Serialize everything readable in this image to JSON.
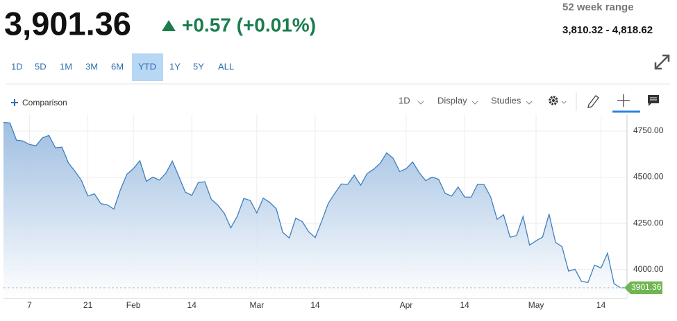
{
  "header": {
    "price": "3,901.36",
    "change": "+0.57 (+0.01%)",
    "range_label": "52 week range",
    "range_value": "3,810.32 - 4,818.62"
  },
  "range_buttons": {
    "items": [
      "1D",
      "5D",
      "1M",
      "3M",
      "6M",
      "YTD",
      "1Y",
      "5Y",
      "ALL"
    ],
    "selected": 5
  },
  "toolbar": {
    "comparison": "Comparison",
    "interval": "1D",
    "display": "Display",
    "studies": "Studies"
  },
  "chart_data": {
    "type": "area",
    "categories": [
      null,
      null,
      null,
      null,
      "7",
      null,
      null,
      null,
      null,
      null,
      null,
      null,
      null,
      "21",
      null,
      null,
      null,
      null,
      null,
      null,
      "Feb",
      null,
      null,
      null,
      null,
      null,
      null,
      null,
      null,
      "14",
      null,
      null,
      null,
      null,
      null,
      null,
      null,
      null,
      null,
      "Mar",
      null,
      null,
      null,
      null,
      null,
      null,
      null,
      null,
      "14",
      null,
      null,
      null,
      null,
      null,
      null,
      null,
      null,
      null,
      null,
      null,
      null,
      null,
      "Apr",
      null,
      null,
      null,
      null,
      null,
      null,
      null,
      null,
      "14",
      null,
      null,
      null,
      null,
      null,
      null,
      null,
      null,
      null,
      null,
      "May",
      null,
      null,
      null,
      null,
      null,
      null,
      null,
      null,
      null,
      "14",
      null,
      null,
      null,
      null
    ],
    "values": [
      4796.56,
      4793.54,
      4700.58,
      4696.05,
      4677.03,
      4670.29,
      4713.07,
      4726.35,
      4659.03,
      4662.85,
      4577.11,
      4532.76,
      4482.73,
      4397.94,
      4410.13,
      4356.45,
      4349.93,
      4326.51,
      4431.85,
      4515.55,
      4546.54,
      4589.38,
      4477.44,
      4500.53,
      4483.87,
      4521.54,
      4587.18,
      4504.08,
      4418.64,
      4401.67,
      4471.07,
      4475.01,
      4380.26,
      4348.87,
      4304.76,
      4225.5,
      4288.7,
      4384.65,
      4373.94,
      4306.26,
      4386.54,
      4363.49,
      4328.87,
      4201.09,
      4170.7,
      4277.88,
      4259.52,
      4204.31,
      4173.11,
      4262.45,
      4357.86,
      4411.67,
      4463.12,
      4461.18,
      4511.61,
      4456.24,
      4520.16,
      4543.06,
      4575.52,
      4631.6,
      4602.45,
      4530.41,
      4545.86,
      4582.64,
      4525.12,
      4481.15,
      4500.21,
      4488.28,
      4412.53,
      4397.45,
      4446.59,
      4392.59,
      4391.69,
      4462.21,
      4459.45,
      4393.66,
      4271.78,
      4296.12,
      4175.2,
      4183.96,
      4287.5,
      4131.93,
      4155.38,
      4175.48,
      4300.17,
      4146.87,
      4123.34,
      3991.24,
      4001.05,
      3935.18,
      3930.08,
      4023.89,
      4008.01,
      4088.85,
      3923.68,
      3900.79,
      3901.36
    ],
    "color": "#3d7fc0",
    "ylim": [
      3845,
      4840
    ],
    "yticks": [
      {
        "value": 4000,
        "label": "4000.00"
      },
      {
        "value": 4250,
        "label": "4250.00"
      },
      {
        "value": 4500,
        "label": "4500.00"
      },
      {
        "value": 4750,
        "label": "4750.00"
      }
    ],
    "grid": true
  }
}
